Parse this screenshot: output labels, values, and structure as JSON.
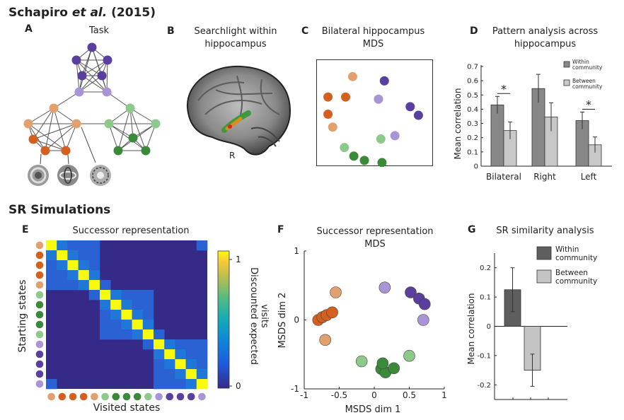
{
  "header": {
    "title_prefix": "Schapiro ",
    "title_italic": "et al.",
    "title_suffix": " (2015)",
    "sr_title": "SR Simulations"
  },
  "panel_a": {
    "letter": "A",
    "title": "Task"
  },
  "panel_b": {
    "letter": "B",
    "title_line1": "Searchlight within",
    "title_line2": "hippocampus",
    "side_label": "R"
  },
  "panel_c": {
    "letter": "C",
    "title_line1": "Bilateral hippocampus",
    "title_line2": "MDS"
  },
  "panel_d": {
    "letter": "D",
    "title_line1": "Pattern analysis across",
    "title_line2": "hippocampus",
    "legend_within": [
      "Within",
      "community"
    ],
    "legend_between": [
      "Between",
      "community"
    ],
    "significance": "*"
  },
  "panel_e": {
    "letter": "E",
    "title": "Successor representation",
    "xlabel": "Visited states",
    "ylabel": "Starting states",
    "colorbar_label_line1": "Discounted expected",
    "colorbar_label_line2": "visits",
    "colorbar_max": "1",
    "colorbar_min": "0"
  },
  "panel_f": {
    "letter": "F",
    "title_line1": "Successor representation",
    "title_line2": "MDS",
    "xlabel": "MSDS dim 1",
    "ylabel": "MSDS dim 2"
  },
  "panel_g": {
    "letter": "G",
    "title": "SR similarity analysis",
    "legend_within": [
      "Within",
      "community"
    ],
    "legend_between": [
      "Between",
      "community"
    ]
  },
  "colors": {
    "orange_dark": "#d4601f",
    "orange_light": "#e3a06f",
    "green_dark": "#3a8a3a",
    "green_light": "#8cc98a",
    "purple_dark": "#5a3f9f",
    "purple_light": "#a994d6",
    "bar_within_d": "#888888",
    "bar_between_d": "#c8c8c8",
    "bar_within_g": "#5e5e5e",
    "bar_between_g": "#c4c4c4"
  },
  "chart_data": [
    {
      "id": "panel_d",
      "type": "bar",
      "categories": [
        "Bilateral",
        "Right",
        "Left"
      ],
      "series": [
        {
          "name": "Within community",
          "values": [
            0.43,
            0.545,
            0.32
          ],
          "errors": [
            0.06,
            0.1,
            0.06
          ]
        },
        {
          "name": "Between community",
          "values": [
            0.25,
            0.345,
            0.15
          ],
          "errors": [
            0.06,
            0.1,
            0.055
          ]
        }
      ],
      "ylabel": "Mean correlation",
      "ylim": [
        0,
        0.7
      ],
      "yticks": [
        0,
        0.1,
        0.2,
        0.3,
        0.4,
        0.5,
        0.6,
        0.7
      ],
      "ytick_labels": [
        "0",
        "0.1",
        "0.2",
        "0.3",
        "0.4",
        "0.5",
        "0.6",
        "0.7"
      ],
      "significant": [
        "Bilateral",
        "Left"
      ]
    },
    {
      "id": "panel_g",
      "type": "bar",
      "categories": [
        "Within community",
        "Between community"
      ],
      "values": [
        0.125,
        -0.15
      ],
      "errors": [
        0.075,
        0.055
      ],
      "ylabel": "Mean correlation",
      "ylim": [
        -0.25,
        0.25
      ],
      "yticks": [
        0.2,
        0.1,
        0,
        -0.1,
        -0.2
      ],
      "ytick_labels": [
        "0.2",
        "0.1",
        "0",
        "-0.1",
        "-0.2"
      ]
    },
    {
      "id": "panel_f",
      "type": "scatter",
      "xlim": [
        -1,
        1
      ],
      "ylim": [
        -1,
        1
      ],
      "xtick_labels": [
        "-1",
        "-0.5",
        "0",
        "0.5",
        "1"
      ],
      "ytick_labels": [
        "1",
        "0",
        "-1"
      ],
      "points": [
        {
          "x": -0.8,
          "y": 0.0,
          "group": "orange_dark"
        },
        {
          "x": -0.74,
          "y": 0.04,
          "group": "orange_dark"
        },
        {
          "x": -0.68,
          "y": 0.07,
          "group": "orange_dark"
        },
        {
          "x": -0.6,
          "y": 0.11,
          "group": "orange_dark"
        },
        {
          "x": -0.55,
          "y": 0.4,
          "group": "orange_light"
        },
        {
          "x": -0.7,
          "y": -0.29,
          "group": "orange_light"
        },
        {
          "x": -0.18,
          "y": -0.6,
          "group": "green_light"
        },
        {
          "x": 0.1,
          "y": -0.71,
          "group": "green_dark"
        },
        {
          "x": 0.16,
          "y": -0.76,
          "group": "green_dark"
        },
        {
          "x": 0.12,
          "y": -0.63,
          "group": "green_dark"
        },
        {
          "x": 0.28,
          "y": -0.7,
          "group": "green_dark"
        },
        {
          "x": 0.5,
          "y": -0.52,
          "group": "green_light"
        },
        {
          "x": 0.15,
          "y": 0.47,
          "group": "purple_light"
        },
        {
          "x": 0.52,
          "y": 0.4,
          "group": "purple_dark"
        },
        {
          "x": 0.64,
          "y": 0.31,
          "group": "purple_dark"
        },
        {
          "x": 0.72,
          "y": 0.23,
          "group": "purple_dark"
        },
        {
          "x": 0.7,
          "y": 0.0,
          "group": "purple_light"
        }
      ]
    },
    {
      "id": "panel_e",
      "type": "heatmap",
      "size": 15,
      "state_groups": [
        "orange_light",
        "orange_dark",
        "orange_dark",
        "orange_dark",
        "orange_light",
        "green_light",
        "green_dark",
        "green_dark",
        "green_dark",
        "green_light",
        "purple_light",
        "purple_dark",
        "purple_dark",
        "purple_dark",
        "purple_light"
      ],
      "colorbar_range": [
        0,
        1
      ]
    },
    {
      "id": "panel_c",
      "type": "scatter",
      "points": [
        {
          "x": 0.31,
          "y": 0.16,
          "group": "orange_light"
        },
        {
          "x": 0.1,
          "y": 0.35,
          "group": "orange_dark"
        },
        {
          "x": 0.25,
          "y": 0.35,
          "group": "orange_dark"
        },
        {
          "x": 0.1,
          "y": 0.51,
          "group": "orange_dark"
        },
        {
          "x": 0.14,
          "y": 0.63,
          "group": "orange_light"
        },
        {
          "x": 0.58,
          "y": 0.2,
          "group": "purple_dark"
        },
        {
          "x": 0.53,
          "y": 0.37,
          "group": "purple_light"
        },
        {
          "x": 0.8,
          "y": 0.44,
          "group": "purple_dark"
        },
        {
          "x": 0.87,
          "y": 0.52,
          "group": "purple_dark"
        },
        {
          "x": 0.67,
          "y": 0.71,
          "group": "purple_light"
        },
        {
          "x": 0.55,
          "y": 0.74,
          "group": "green_light"
        },
        {
          "x": 0.24,
          "y": 0.82,
          "group": "green_light"
        },
        {
          "x": 0.32,
          "y": 0.9,
          "group": "green_dark"
        },
        {
          "x": 0.41,
          "y": 0.94,
          "group": "green_dark"
        },
        {
          "x": 0.56,
          "y": 0.96,
          "group": "green_dark"
        }
      ]
    }
  ]
}
